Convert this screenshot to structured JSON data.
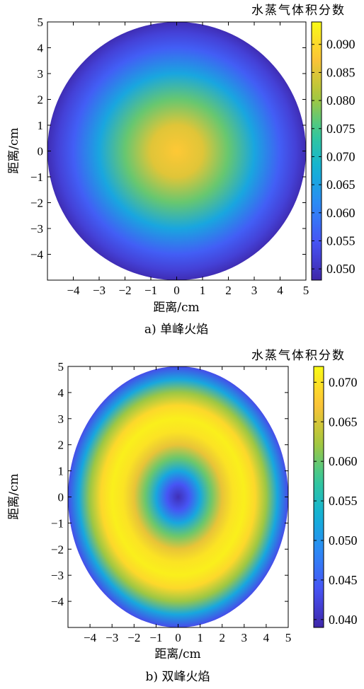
{
  "chart_data": [
    {
      "type": "heatmap",
      "subtype": "radial-disc",
      "caption": "a) 单峰火焰",
      "colorbar_title": "水蒸气体积分数",
      "xlabel": "距离/cm",
      "ylabel": "距离/cm",
      "xlim": [
        -5,
        5
      ],
      "ylim": [
        -5,
        5
      ],
      "xticks": [
        -4,
        -3,
        -2,
        -1,
        0,
        1,
        2,
        3,
        4,
        5
      ],
      "yticks": [
        5,
        4,
        3,
        2,
        1,
        0,
        -1,
        -2,
        -3,
        -4
      ],
      "colorbar_range": [
        0.048,
        0.094
      ],
      "colorbar_ticks": [
        "0.090",
        "0.085",
        "0.080",
        "0.075",
        "0.070",
        "0.065",
        "0.060",
        "0.055",
        "0.050"
      ],
      "disc_radius_cm": 5,
      "radial_profile": {
        "r_cm": [
          0,
          1,
          2,
          3,
          4,
          4.6,
          5
        ],
        "value": [
          0.088,
          0.085,
          0.077,
          0.066,
          0.056,
          0.052,
          0.049
        ]
      },
      "colormap": "parula"
    },
    {
      "type": "heatmap",
      "subtype": "radial-disc",
      "caption": "b) 双峰火焰",
      "colorbar_title": "水蒸气体积分数",
      "xlabel": "距离/cm",
      "ylabel": "距离/cm",
      "xlim": [
        -5,
        5
      ],
      "ylim": [
        -5,
        5
      ],
      "xticks": [
        -4,
        -3,
        -2,
        -1,
        0,
        1,
        2,
        3,
        4,
        5
      ],
      "yticks": [
        5,
        4,
        3,
        2,
        1,
        0,
        -1,
        -2,
        -3,
        -4
      ],
      "colorbar_range": [
        0.039,
        0.072
      ],
      "colorbar_ticks": [
        "0.070",
        "0.065",
        "0.060",
        "0.055",
        "0.050",
        "0.045",
        "0.040"
      ],
      "disc_radius_cm": 5,
      "radial_profile": {
        "r_cm": [
          0,
          0.5,
          1,
          1.5,
          2,
          2.5,
          3,
          3.5,
          4,
          4.5,
          5
        ],
        "value": [
          0.04,
          0.044,
          0.052,
          0.06,
          0.066,
          0.07,
          0.071,
          0.069,
          0.062,
          0.052,
          0.043
        ]
      },
      "colormap": "parula"
    }
  ]
}
